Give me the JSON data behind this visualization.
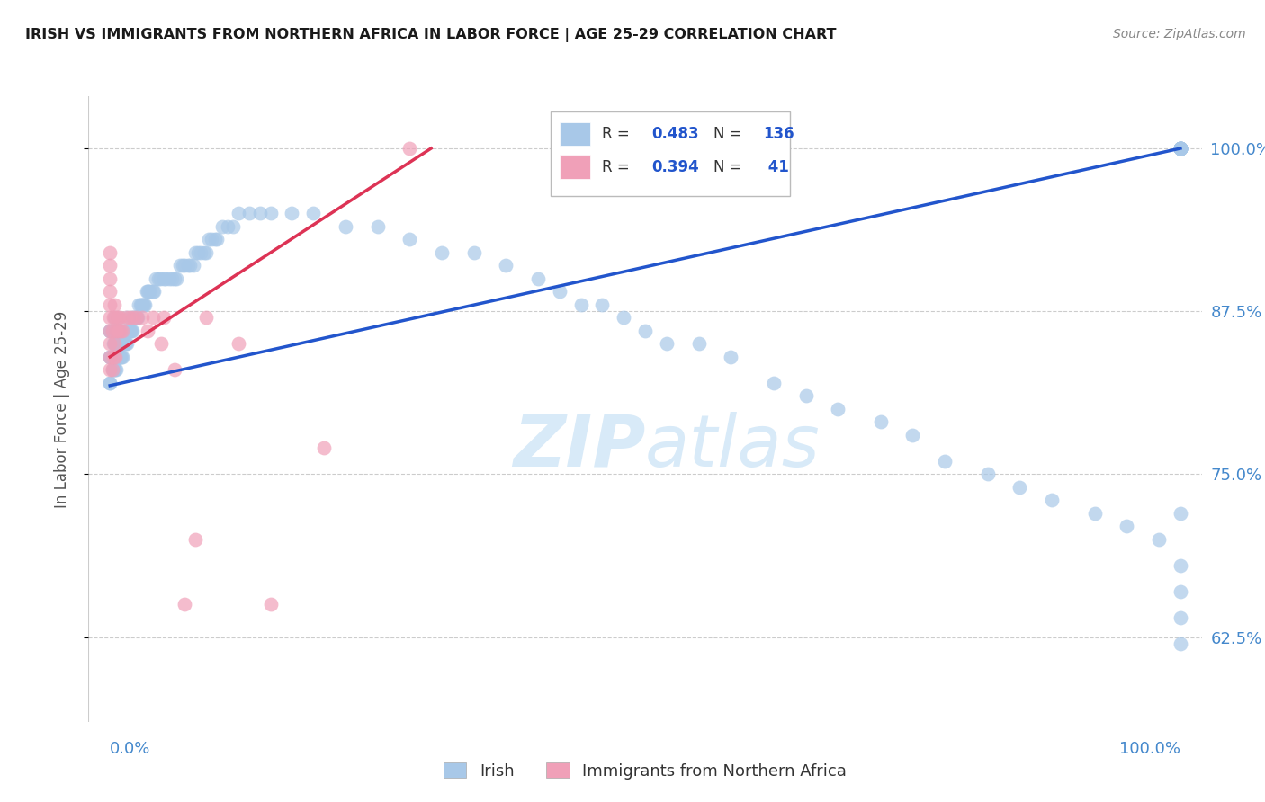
{
  "title": "IRISH VS IMMIGRANTS FROM NORTHERN AFRICA IN LABOR FORCE | AGE 25-29 CORRELATION CHART",
  "source": "Source: ZipAtlas.com",
  "ylabel": "In Labor Force | Age 25-29",
  "xlim": [
    -0.02,
    1.02
  ],
  "ylim": [
    0.56,
    1.04
  ],
  "yticks": [
    0.625,
    0.75,
    0.875,
    1.0
  ],
  "ytick_labels": [
    "62.5%",
    "75.0%",
    "87.5%",
    "100.0%"
  ],
  "irish_R": 0.483,
  "irish_N": 136,
  "africa_R": 0.394,
  "africa_N": 41,
  "irish_color": "#a8c8e8",
  "africa_color": "#f0a0b8",
  "irish_line_color": "#2255cc",
  "africa_line_color": "#dd3355",
  "title_color": "#202020",
  "axis_label_color": "#4488cc",
  "watermark_color": "#d8eaf8",
  "irish_line_x0": 0.0,
  "irish_line_y0": 0.818,
  "irish_line_x1": 1.0,
  "irish_line_y1": 1.0,
  "africa_line_x0": 0.0,
  "africa_line_y0": 0.84,
  "africa_line_x1": 0.3,
  "africa_line_y1": 1.0,
  "irish_x": [
    0.0,
    0.0,
    0.0,
    0.0,
    0.0,
    0.0,
    0.002,
    0.002,
    0.003,
    0.003,
    0.004,
    0.004,
    0.004,
    0.005,
    0.005,
    0.006,
    0.006,
    0.007,
    0.007,
    0.007,
    0.008,
    0.008,
    0.009,
    0.009,
    0.01,
    0.01,
    0.011,
    0.011,
    0.012,
    0.012,
    0.013,
    0.014,
    0.014,
    0.015,
    0.015,
    0.016,
    0.016,
    0.017,
    0.018,
    0.019,
    0.02,
    0.02,
    0.021,
    0.022,
    0.023,
    0.024,
    0.025,
    0.026,
    0.027,
    0.028,
    0.029,
    0.03,
    0.031,
    0.032,
    0.033,
    0.034,
    0.035,
    0.036,
    0.038,
    0.04,
    0.041,
    0.043,
    0.045,
    0.047,
    0.05,
    0.052,
    0.055,
    0.058,
    0.06,
    0.062,
    0.065,
    0.068,
    0.07,
    0.073,
    0.075,
    0.078,
    0.08,
    0.082,
    0.085,
    0.088,
    0.09,
    0.092,
    0.095,
    0.098,
    0.1,
    0.105,
    0.11,
    0.115,
    0.12,
    0.13,
    0.14,
    0.15,
    0.17,
    0.19,
    0.22,
    0.25,
    0.28,
    0.31,
    0.34,
    0.37,
    0.4,
    0.42,
    0.44,
    0.46,
    0.48,
    0.5,
    0.52,
    0.55,
    0.58,
    0.62,
    0.65,
    0.68,
    0.72,
    0.75,
    0.78,
    0.82,
    0.85,
    0.88,
    0.92,
    0.95,
    0.98,
    1.0,
    1.0,
    1.0,
    1.0,
    1.0,
    1.0,
    1.0,
    1.0,
    1.0,
    1.0,
    1.0,
    1.0,
    1.0,
    1.0,
    1.0
  ],
  "irish_y": [
    0.82,
    0.84,
    0.84,
    0.86,
    0.82,
    0.86,
    0.83,
    0.86,
    0.83,
    0.85,
    0.83,
    0.85,
    0.87,
    0.83,
    0.85,
    0.83,
    0.85,
    0.84,
    0.85,
    0.87,
    0.84,
    0.86,
    0.84,
    0.86,
    0.84,
    0.86,
    0.84,
    0.86,
    0.84,
    0.86,
    0.85,
    0.85,
    0.86,
    0.85,
    0.86,
    0.85,
    0.87,
    0.86,
    0.86,
    0.86,
    0.86,
    0.87,
    0.86,
    0.87,
    0.87,
    0.87,
    0.87,
    0.87,
    0.88,
    0.88,
    0.88,
    0.88,
    0.88,
    0.88,
    0.88,
    0.89,
    0.89,
    0.89,
    0.89,
    0.89,
    0.89,
    0.9,
    0.9,
    0.9,
    0.9,
    0.9,
    0.9,
    0.9,
    0.9,
    0.9,
    0.91,
    0.91,
    0.91,
    0.91,
    0.91,
    0.91,
    0.92,
    0.92,
    0.92,
    0.92,
    0.92,
    0.93,
    0.93,
    0.93,
    0.93,
    0.94,
    0.94,
    0.94,
    0.95,
    0.95,
    0.95,
    0.95,
    0.95,
    0.95,
    0.94,
    0.94,
    0.93,
    0.92,
    0.92,
    0.91,
    0.9,
    0.89,
    0.88,
    0.88,
    0.87,
    0.86,
    0.85,
    0.85,
    0.84,
    0.82,
    0.81,
    0.8,
    0.79,
    0.78,
    0.76,
    0.75,
    0.74,
    0.73,
    0.72,
    0.71,
    0.7,
    1.0,
    1.0,
    1.0,
    1.0,
    1.0,
    1.0,
    1.0,
    1.0,
    1.0,
    1.0,
    0.62,
    0.64,
    0.66,
    0.68,
    0.72
  ],
  "africa_x": [
    0.0,
    0.0,
    0.0,
    0.0,
    0.0,
    0.0,
    0.0,
    0.0,
    0.0,
    0.0,
    0.002,
    0.002,
    0.003,
    0.003,
    0.004,
    0.004,
    0.005,
    0.005,
    0.006,
    0.007,
    0.008,
    0.009,
    0.01,
    0.012,
    0.015,
    0.018,
    0.022,
    0.025,
    0.03,
    0.035,
    0.04,
    0.048,
    0.05,
    0.06,
    0.07,
    0.08,
    0.09,
    0.12,
    0.15,
    0.2,
    0.28
  ],
  "africa_y": [
    0.83,
    0.84,
    0.85,
    0.86,
    0.87,
    0.88,
    0.89,
    0.9,
    0.91,
    0.92,
    0.83,
    0.86,
    0.84,
    0.87,
    0.85,
    0.88,
    0.84,
    0.87,
    0.86,
    0.87,
    0.86,
    0.87,
    0.86,
    0.86,
    0.87,
    0.87,
    0.87,
    0.87,
    0.87,
    0.86,
    0.87,
    0.85,
    0.87,
    0.83,
    0.65,
    0.7,
    0.87,
    0.85,
    0.65,
    0.77,
    1.0
  ]
}
